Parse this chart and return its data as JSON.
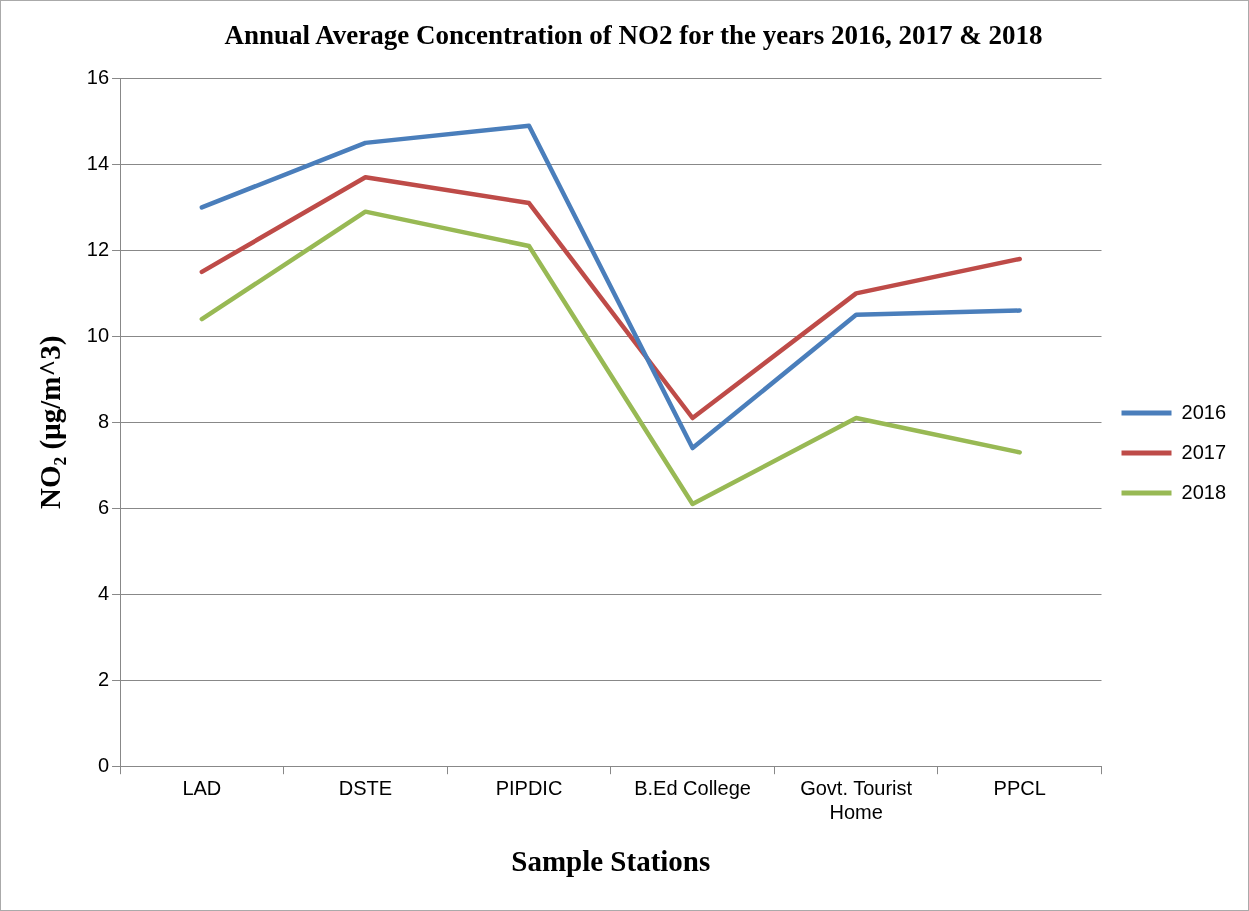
{
  "chart_data": {
    "type": "line",
    "title": "Annual Average Concentration of NO2 for the years 2016, 2017 & 2018",
    "xlabel": "Sample Stations",
    "ylabel": "NO₂ (µg/m^3)",
    "categories": [
      "LAD",
      "DSTE",
      "PIPDIC",
      "B.Ed College",
      "Govt. Tourist Home",
      "PPCL"
    ],
    "series": [
      {
        "name": "2016",
        "color": "#4a7ebb",
        "values": [
          13.0,
          14.5,
          14.9,
          7.4,
          10.5,
          10.6
        ]
      },
      {
        "name": "2017",
        "color": "#be4b48",
        "values": [
          11.5,
          13.7,
          13.1,
          8.1,
          11.0,
          11.8
        ]
      },
      {
        "name": "2018",
        "color": "#98b954",
        "values": [
          10.4,
          12.9,
          12.1,
          6.1,
          8.1,
          7.3
        ]
      }
    ],
    "ylim": [
      0,
      16
    ],
    "yticks": [
      0,
      2,
      4,
      6,
      8,
      10,
      12,
      14,
      16
    ],
    "grid": "y",
    "legend": "right",
    "marker": "none",
    "line_style": "solid"
  }
}
